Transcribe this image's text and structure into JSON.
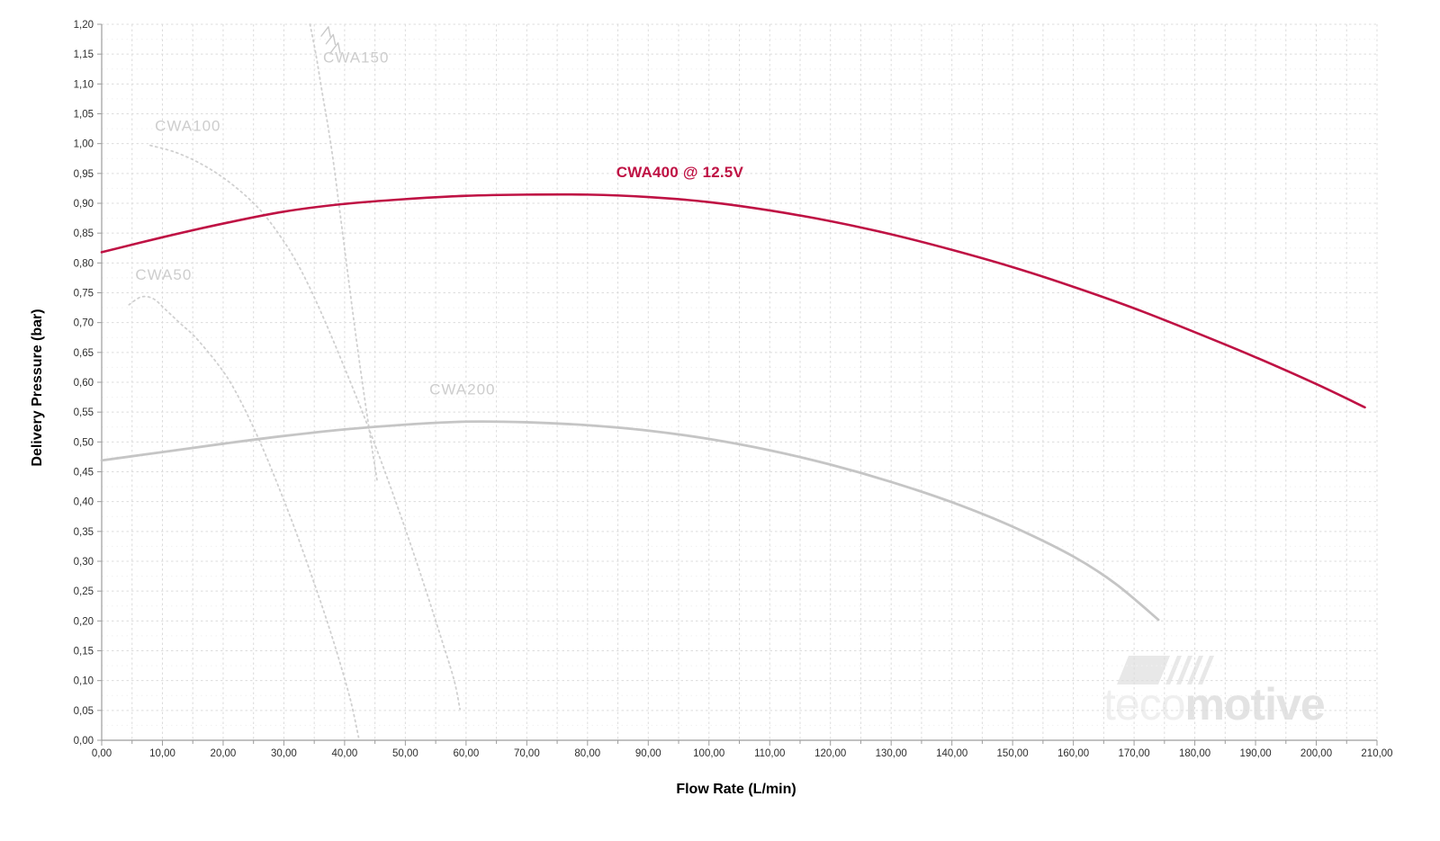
{
  "page": {
    "background": "#ffffff"
  },
  "axes": {
    "x": {
      "title": "Flow Rate (L/min)",
      "min": 0,
      "max": 210,
      "label_step": 10,
      "grid_step": 5,
      "tick_labels": [
        "0,00",
        "10,00",
        "20,00",
        "30,00",
        "40,00",
        "50,00",
        "60,00",
        "70,00",
        "80,00",
        "90,00",
        "100,00",
        "110,00",
        "120,00",
        "130,00",
        "140,00",
        "150,00",
        "160,00",
        "170,00",
        "180,00",
        "190,00",
        "200,00",
        "210,00"
      ]
    },
    "y": {
      "title": "Delivery Pressure (bar)",
      "min": 0,
      "max": 1.2,
      "label_step": 0.05,
      "minor_step": 0.025,
      "tick_labels": [
        "1,20",
        "1,15",
        "1,10",
        "1,05",
        "1,00",
        "0,95",
        "0,90",
        "0,85",
        "0,80",
        "0,75",
        "0,70",
        "0,65",
        "0,60",
        "0,55",
        "0,50",
        "0,45",
        "0,40",
        "0,35",
        "0,30",
        "0,25",
        "0,20",
        "0,15",
        "0,10",
        "0,05",
        "0,00"
      ]
    }
  },
  "chart_data": {
    "type": "line",
    "title": "",
    "xlabel": "Flow Rate (L/min)",
    "ylabel": "Delivery Pressure (bar)",
    "xlim": [
      0,
      210
    ],
    "ylim": [
      0,
      1.2
    ],
    "grid": "on",
    "legend_position": "inline-labels",
    "series": [
      {
        "name": "CWA50",
        "style": "dotted",
        "color": "#d0d0d0",
        "width": 1.8,
        "label": "CWA50",
        "label_pos": [
          10.2,
          0.772
        ],
        "label_class": "muted",
        "points": [
          [
            4.5,
            0.73
          ],
          [
            6.5,
            0.743
          ],
          [
            8.5,
            0.74
          ],
          [
            10.5,
            0.722
          ],
          [
            13,
            0.698
          ],
          [
            15,
            0.68
          ],
          [
            17,
            0.657
          ],
          [
            19,
            0.632
          ],
          [
            21,
            0.603
          ],
          [
            23,
            0.566
          ],
          [
            25,
            0.524
          ],
          [
            27,
            0.478
          ],
          [
            29,
            0.428
          ],
          [
            31,
            0.376
          ],
          [
            33,
            0.321
          ],
          [
            35,
            0.263
          ],
          [
            37,
            0.203
          ],
          [
            39,
            0.138
          ],
          [
            41,
            0.066
          ],
          [
            42.3,
            0.005
          ]
        ]
      },
      {
        "name": "CWA100",
        "style": "dotted",
        "color": "#d0d0d0",
        "width": 1.8,
        "label": "CWA100",
        "label_pos": [
          14.2,
          1.021
        ],
        "label_class": "muted",
        "points": [
          [
            8,
            0.997
          ],
          [
            12,
            0.986
          ],
          [
            16,
            0.968
          ],
          [
            20,
            0.943
          ],
          [
            24,
            0.91
          ],
          [
            27,
            0.878
          ],
          [
            30,
            0.836
          ],
          [
            32,
            0.803
          ],
          [
            34,
            0.764
          ],
          [
            36,
            0.72
          ],
          [
            38,
            0.673
          ],
          [
            40,
            0.624
          ],
          [
            42,
            0.574
          ],
          [
            44,
            0.522
          ],
          [
            46,
            0.468
          ],
          [
            48,
            0.412
          ],
          [
            50,
            0.354
          ],
          [
            52,
            0.294
          ],
          [
            54,
            0.232
          ],
          [
            56,
            0.168
          ],
          [
            58,
            0.102
          ],
          [
            59,
            0.052
          ]
        ]
      },
      {
        "name": "CWA150",
        "style": "dotted",
        "color": "#d0d0d0",
        "width": 1.8,
        "label": "CWA150",
        "label_pos": [
          41.9,
          1.136
        ],
        "label_class": "muted",
        "points": [
          [
            34.3,
            1.2
          ],
          [
            35.3,
            1.148
          ],
          [
            36.3,
            1.086
          ],
          [
            37.3,
            1.027
          ],
          [
            38.2,
            0.966
          ],
          [
            39,
            0.903
          ],
          [
            39.8,
            0.84
          ],
          [
            40.6,
            0.776
          ],
          [
            41.4,
            0.713
          ],
          [
            42.2,
            0.652
          ],
          [
            43,
            0.594
          ],
          [
            43.8,
            0.538
          ],
          [
            44.6,
            0.484
          ],
          [
            45.4,
            0.432
          ]
        ]
      },
      {
        "name": "CWA200",
        "style": "solid",
        "color": "#c5c5c5",
        "width": 2.8,
        "label": "CWA200",
        "label_pos": [
          59.4,
          0.58
        ],
        "label_class": "muted",
        "points": [
          [
            0,
            0.469
          ],
          [
            10,
            0.483
          ],
          [
            20,
            0.497
          ],
          [
            30,
            0.51
          ],
          [
            40,
            0.521
          ],
          [
            50,
            0.529
          ],
          [
            60,
            0.534
          ],
          [
            70,
            0.533
          ],
          [
            80,
            0.528
          ],
          [
            90,
            0.519
          ],
          [
            100,
            0.505
          ],
          [
            110,
            0.486
          ],
          [
            120,
            0.462
          ],
          [
            130,
            0.433
          ],
          [
            140,
            0.399
          ],
          [
            150,
            0.358
          ],
          [
            160,
            0.308
          ],
          [
            167,
            0.262
          ],
          [
            174,
            0.202
          ]
        ]
      },
      {
        "name": "CWA400 @ 12.5V",
        "style": "solid",
        "color": "#bf1244",
        "width": 2.6,
        "label": "CWA400 @ 12.5V",
        "label_pos": [
          95.2,
          0.944
        ],
        "label_class": "accent",
        "points": [
          [
            0,
            0.818
          ],
          [
            10,
            0.843
          ],
          [
            20,
            0.866
          ],
          [
            30,
            0.886
          ],
          [
            40,
            0.899
          ],
          [
            50,
            0.907
          ],
          [
            60,
            0.9125
          ],
          [
            70,
            0.9145
          ],
          [
            80,
            0.9145
          ],
          [
            90,
            0.9105
          ],
          [
            100,
            0.902
          ],
          [
            110,
            0.888
          ],
          [
            120,
            0.87
          ],
          [
            130,
            0.848
          ],
          [
            140,
            0.822
          ],
          [
            150,
            0.793
          ],
          [
            160,
            0.76
          ],
          [
            170,
            0.724
          ],
          [
            180,
            0.684
          ],
          [
            190,
            0.642
          ],
          [
            200,
            0.597
          ],
          [
            208,
            0.558
          ]
        ]
      }
    ],
    "annotations": {
      "continuation_arrows": {
        "series": "CWA150",
        "color": "#c9c9c9",
        "positions": [
          [
            37.1,
            1.187
          ],
          [
            37.9,
            1.174
          ],
          [
            38.7,
            1.16
          ]
        ]
      }
    }
  },
  "watermark": {
    "text_light": "teco",
    "text_bold": "motive"
  },
  "colors": {
    "accent": "#bf1244",
    "curve_gray": "#c5c5c5",
    "dotted_gray": "#d0d0d0",
    "label_gray": "#cdcdcd",
    "grid": "#dcdcdc",
    "grid_minor": "#f1f1f1",
    "axis": "#9c9c9c",
    "tick_text": "#2e2e2e",
    "logo_light": "#efefef",
    "logo_bold": "#e3e3e3",
    "logo_icon": "#e8e8e8"
  }
}
